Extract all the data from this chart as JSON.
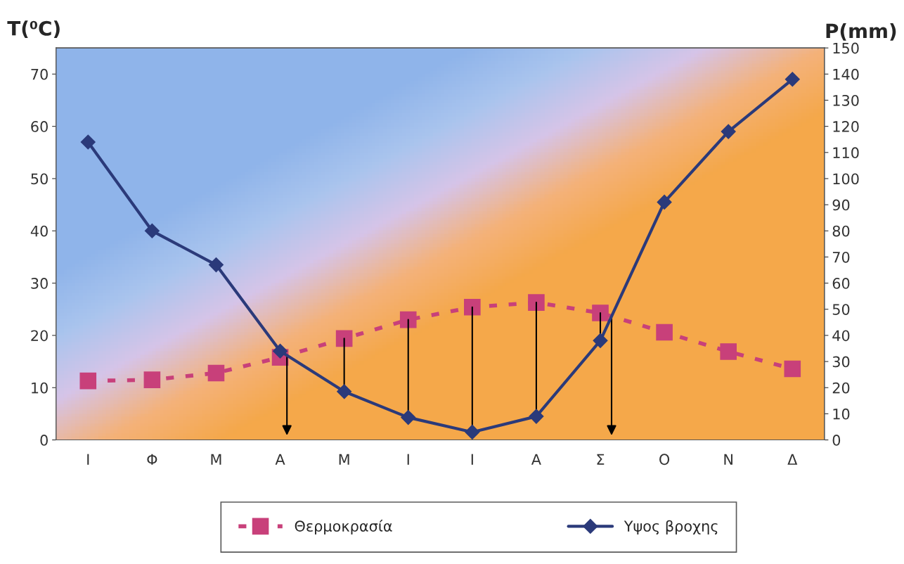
{
  "chart_data": {
    "type": "line",
    "categories": [
      "Ι",
      "Φ",
      "Μ",
      "Α",
      "Μ",
      "Ι",
      "Ι",
      "Α",
      "Σ",
      "Ο",
      "Ν",
      "Δ"
    ],
    "ylabel": "T(⁰C)",
    "y2label": "P(mm)",
    "ylim": [
      0,
      75
    ],
    "yticks": [
      0,
      10,
      20,
      30,
      40,
      50,
      60,
      70
    ],
    "y2lim": [
      0,
      150
    ],
    "y2ticks": [
      0,
      10,
      20,
      30,
      40,
      50,
      60,
      70,
      80,
      90,
      100,
      110,
      120,
      130,
      140,
      150
    ],
    "series": [
      {
        "name": "Θερμοκρασία",
        "color": "#c8407a",
        "marker": "square",
        "line_style": "dashed",
        "values": [
          11.3,
          11.5,
          12.8,
          15.8,
          19.4,
          23,
          25.4,
          26.3,
          24.3,
          20.6,
          16.9,
          13.6
        ]
      },
      {
        "name": "Υψος βροχης",
        "color": "#2b3a7a",
        "marker": "diamond",
        "line_style": "solid",
        "axis": "y2",
        "values": [
          114,
          80,
          67,
          34,
          18.5,
          8.6,
          3,
          9,
          38,
          91,
          118,
          138
        ]
      }
    ],
    "legend": "bottom",
    "grid": false
  }
}
